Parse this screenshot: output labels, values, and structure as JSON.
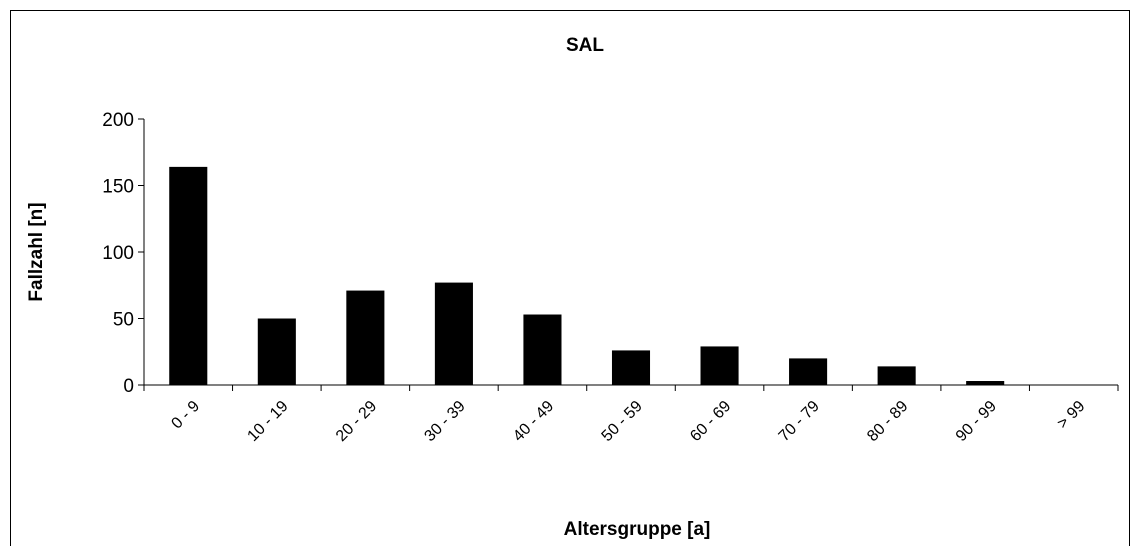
{
  "chart_data": {
    "type": "bar",
    "title": "SAL",
    "xlabel": "Altersgruppe [a]",
    "ylabel": "Fallzahl [n]",
    "categories": [
      "0 - 9",
      "10 - 19",
      "20 - 29",
      "30 - 39",
      "40 - 49",
      "50 - 59",
      "60 - 69",
      "70 - 79",
      "80 - 89",
      "90 - 99",
      "> 99"
    ],
    "values": [
      164,
      50,
      71,
      77,
      53,
      26,
      29,
      20,
      14,
      3,
      0
    ],
    "ylim": [
      0,
      200
    ],
    "yticks": [
      0,
      50,
      100,
      150,
      200
    ],
    "grid": false,
    "legend": "none",
    "bar_color": "#000000"
  }
}
